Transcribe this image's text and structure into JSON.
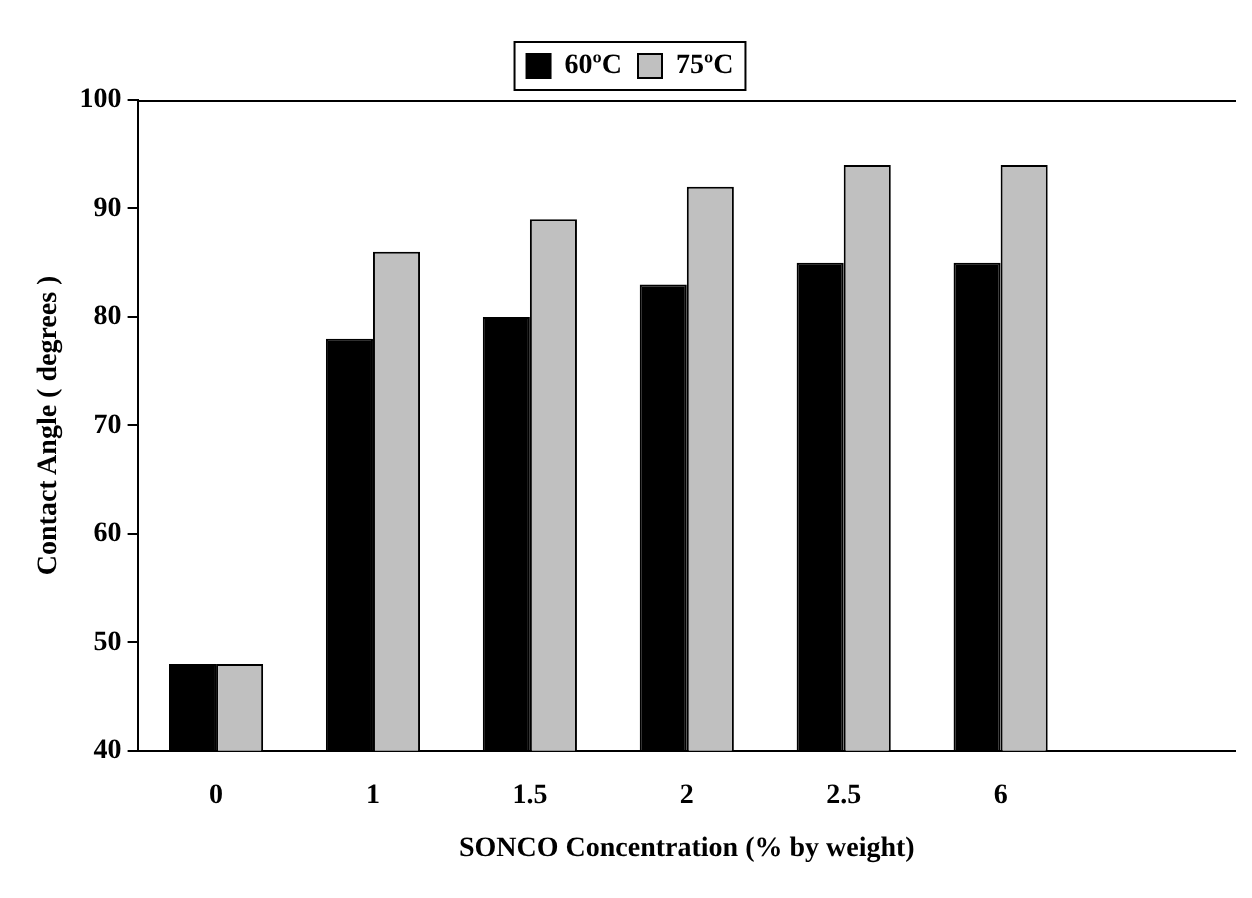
{
  "chart_data": {
    "type": "bar",
    "xlabel": "SONCO Concentration (% by weight)",
    "ylabel": "Contact Angle ( degrees )",
    "categories": [
      "0",
      "1",
      "1.5",
      "2",
      "2.5",
      "6",
      null
    ],
    "series": [
      {
        "name": "60ºC",
        "color": "#000000",
        "values": [
          48,
          78,
          80,
          83,
          85,
          85,
          null
        ]
      },
      {
        "name": "75ºC",
        "color": "#c0c0c0",
        "values": [
          48,
          86,
          89,
          92,
          94,
          94,
          null
        ]
      }
    ],
    "ylim": [
      40,
      100
    ],
    "yticks": [
      40,
      50,
      60,
      70,
      80,
      90,
      100
    ],
    "grid": false,
    "legend": "top"
  }
}
